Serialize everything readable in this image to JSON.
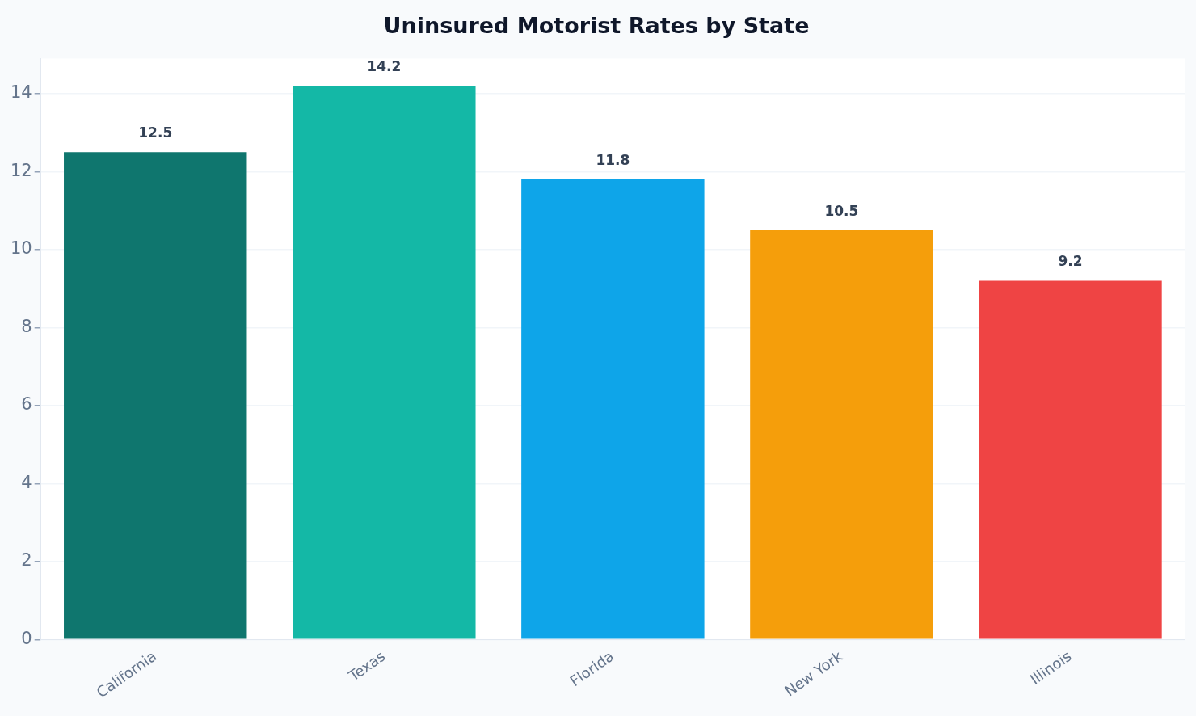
{
  "chart_data": {
    "type": "bar",
    "title": "Uninsured Motorist Rates by State",
    "categories": [
      "California",
      "Texas",
      "Florida",
      "New York",
      "Illinois"
    ],
    "values": [
      12.5,
      14.2,
      11.8,
      10.5,
      9.2
    ],
    "colors": [
      "#0f766e",
      "#14b8a6",
      "#0ea5e9",
      "#f59e0b",
      "#ef4444"
    ],
    "ylim": [
      0,
      14.9
    ],
    "yticks": [
      0,
      2,
      4,
      6,
      8,
      10,
      12,
      14
    ],
    "grid": "y",
    "data_labels": true
  }
}
